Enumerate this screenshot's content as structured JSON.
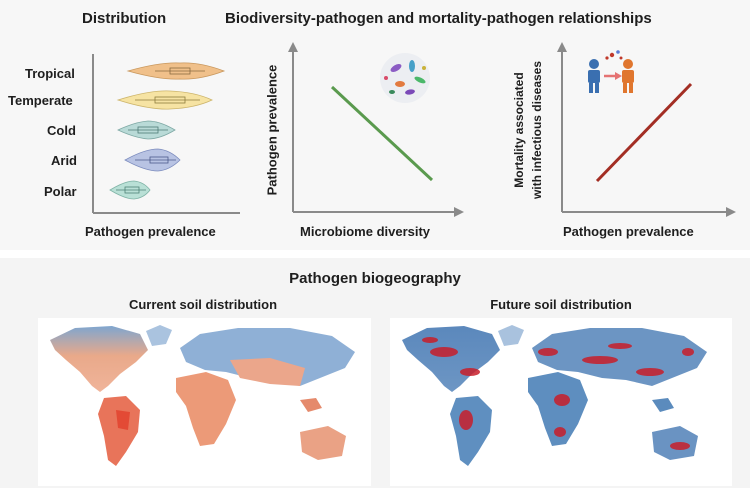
{
  "distribution": {
    "title": "Distribution",
    "xlabel": "Pathogen prevalence",
    "categories": [
      "Tropical",
      "Temperate",
      "Cold",
      "Arid",
      "Polar"
    ],
    "colors": [
      "#f0c08a",
      "#f6e3a3",
      "#b9dad7",
      "#b8c3e3",
      "#b9e0d6"
    ]
  },
  "relationships": {
    "title": "Biodiversity-pathogen and mortality-pathogen relationships",
    "left_panel": {
      "ylabel": "Pathogen prevalence",
      "xlabel": "Microbiome diversity",
      "trend": "negative",
      "line_color": "#5a9a4e"
    },
    "right_panel": {
      "ylabel_line1": "Mortality associated",
      "ylabel_line2": "with infectious diseases",
      "xlabel": "Pathogen prevalence",
      "trend": "positive",
      "line_color": "#a32e24"
    }
  },
  "biogeography": {
    "title": "Pathogen biogeography",
    "current_map": {
      "title": "Current soil distribution"
    },
    "future_map": {
      "title": "Future soil distribution"
    }
  },
  "colors": {
    "low": "#4f86c2",
    "high": "#e4603d",
    "hotspot": "#c81e2a"
  }
}
